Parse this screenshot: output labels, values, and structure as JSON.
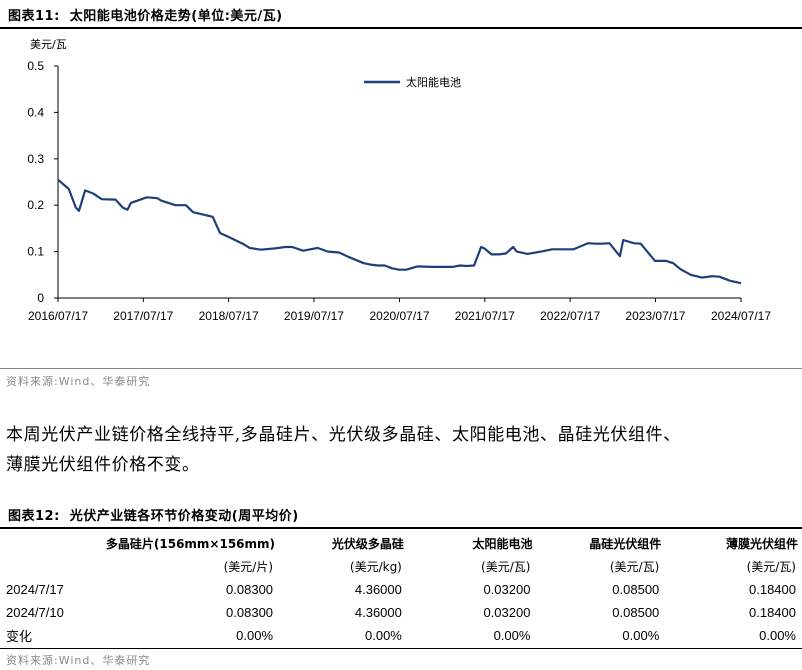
{
  "figure1": {
    "label": "图表11:",
    "title": "太阳能电池价格走势(单位:美元/瓦)",
    "source": "资料来源:Wind、华泰研究"
  },
  "chart_data": {
    "type": "line",
    "title": "",
    "xlabel": "",
    "ylabel": "美元/瓦",
    "ylim": [
      0,
      0.5
    ],
    "yticks": [
      "0",
      "0.1",
      "0.2",
      "0.3",
      "0.4",
      "0.5"
    ],
    "xticks": [
      "2016/07/17",
      "2017/07/17",
      "2018/07/17",
      "2019/07/17",
      "2020/07/17",
      "2021/07/17",
      "2022/07/17",
      "2023/07/17",
      "2024/07/17"
    ],
    "legend": "top-center",
    "grid": false,
    "color": "#1f3f7a",
    "series": [
      {
        "name": "太阳能电池",
        "x": [
          "2016/07/17",
          "2016/09/01",
          "2016/10/01",
          "2016/10/15",
          "2016/11/10",
          "2016/12/15",
          "2017/01/20",
          "2017/03/20",
          "2017/04/20",
          "2017/05/10",
          "2017/05/25",
          "2017/08/01",
          "2017/09/15",
          "2017/10/01",
          "2017/12/01",
          "2018/01/15",
          "2018/02/15",
          "2018/04/15",
          "2018/05/10",
          "2018/06/10",
          "2018/07/15",
          "2018/09/15",
          "2018/10/15",
          "2018/12/01",
          "2019/02/01",
          "2019/03/15",
          "2019/04/15",
          "2019/06/01",
          "2019/08/01",
          "2019/09/15",
          "2019/11/01",
          "2019/12/15",
          "2020/02/15",
          "2020/03/15",
          "2020/04/15",
          "2020/05/15",
          "2020/06/15",
          "2020/07/15",
          "2020/08/15",
          "2020/10/01",
          "2020/12/01",
          "2021/01/15",
          "2021/03/01",
          "2021/04/01",
          "2021/05/01",
          "2021/06/01",
          "2021/07/01",
          "2021/07/15",
          "2021/08/15",
          "2021/09/15",
          "2021/10/15",
          "2021/11/15",
          "2021/12/01",
          "2022/01/15",
          "2022/03/15",
          "2022/05/01",
          "2022/06/01",
          "2022/08/01",
          "2022/10/01",
          "2022/11/01",
          "2022/12/01",
          "2023/01/01",
          "2023/02/15",
          "2023/03/01",
          "2023/04/15",
          "2023/05/15",
          "2023/07/15",
          "2023/09/01",
          "2023/10/01",
          "2023/11/01",
          "2023/12/15",
          "2024/02/01",
          "2024/03/15",
          "2024/04/15",
          "2024/06/01",
          "2024/07/17"
        ],
        "values": [
          0.255,
          0.235,
          0.195,
          0.188,
          0.232,
          0.225,
          0.213,
          0.212,
          0.195,
          0.19,
          0.205,
          0.217,
          0.215,
          0.21,
          0.2,
          0.2,
          0.185,
          0.178,
          0.175,
          0.14,
          0.132,
          0.117,
          0.108,
          0.104,
          0.107,
          0.11,
          0.11,
          0.102,
          0.108,
          0.1,
          0.098,
          0.088,
          0.075,
          0.072,
          0.07,
          0.07,
          0.064,
          0.061,
          0.061,
          0.068,
          0.067,
          0.067,
          0.067,
          0.07,
          0.069,
          0.07,
          0.11,
          0.107,
          0.094,
          0.094,
          0.096,
          0.11,
          0.1,
          0.095,
          0.1,
          0.105,
          0.105,
          0.105,
          0.118,
          0.117,
          0.117,
          0.118,
          0.09,
          0.125,
          0.118,
          0.117,
          0.08,
          0.08,
          0.075,
          0.062,
          0.05,
          0.044,
          0.047,
          0.046,
          0.037,
          0.032
        ]
      }
    ]
  },
  "paragraph": {
    "line1": "本周光伏产业链价格全线持平,多晶硅片、光伏级多晶硅、太阳能电池、晶硅光伏组件、",
    "line2": "薄膜光伏组件价格不变。"
  },
  "table": {
    "label": "图表12:",
    "title": "光伏产业链各环节价格变动(周平均价)",
    "headers": [
      "多晶硅片(156mm×156mm)",
      "光伏级多晶硅",
      "太阳能电池",
      "晶硅光伏组件",
      "薄膜光伏组件"
    ],
    "units": [
      "(美元/片)",
      "(美元/kg)",
      "(美元/瓦)",
      "(美元/瓦)",
      "(美元/瓦)"
    ],
    "rows": [
      {
        "label": "2024/7/17",
        "values": [
          "0.08300",
          "4.36000",
          "0.03200",
          "0.08500",
          "0.18400"
        ]
      },
      {
        "label": "2024/7/10",
        "values": [
          "0.08300",
          "4.36000",
          "0.03200",
          "0.08500",
          "0.18400"
        ]
      },
      {
        "label": "变化",
        "values": [
          "0.00%",
          "0.00%",
          "0.00%",
          "0.00%",
          "0.00%"
        ]
      }
    ],
    "source": "资料来源:Wind、华泰研究"
  }
}
